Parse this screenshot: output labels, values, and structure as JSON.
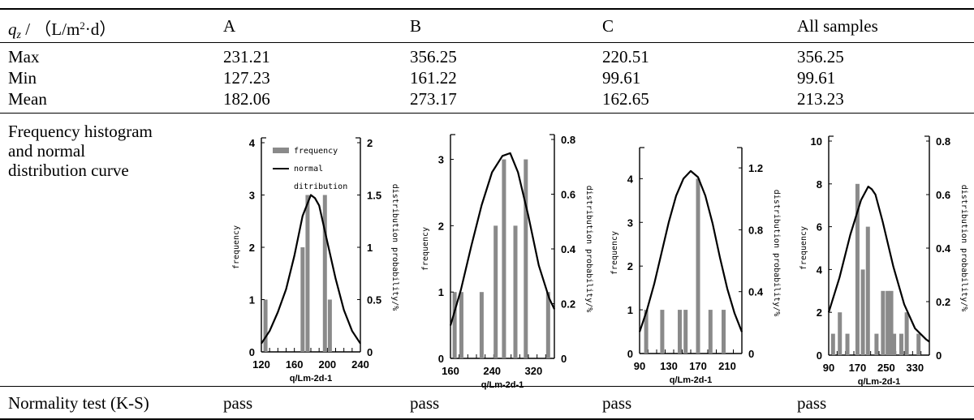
{
  "table": {
    "header": {
      "label_var": "q",
      "label_sub": "z",
      "label_pre": " / （L/m",
      "label_sup": "2",
      "label_post": "·d）",
      "columns": [
        "A",
        "B",
        "C",
        "All samples"
      ]
    },
    "rows": [
      {
        "label": "Max",
        "values": [
          "231.21",
          "356.25",
          "220.51",
          "356.25"
        ]
      },
      {
        "label": "Min",
        "values": [
          "127.23",
          "161.22",
          "99.61",
          "99.61"
        ]
      },
      {
        "label": "Mean",
        "values": [
          "182.06",
          "273.17",
          "162.65",
          "213.23"
        ]
      }
    ],
    "hist_label": "Frequency histogram and normal distribution curve",
    "test_label": "Normality test (K-S)",
    "test_values": [
      "pass",
      "pass",
      "pass",
      "pass"
    ]
  },
  "chart_data": [
    {
      "type": "bar",
      "panel": "A",
      "xlabel": "q/Lm-2d-1",
      "ylabel": "frequency",
      "y2label": "distribution probability/%",
      "x_ticks": [
        "120",
        "160",
        "200",
        "240"
      ],
      "xlim": [
        120,
        240
      ],
      "y_ticks": [
        "0",
        "1",
        "2",
        "3",
        "4"
      ],
      "ylim": [
        0,
        4
      ],
      "y2_ticks": [
        "0",
        "0.5",
        "1",
        "1.5",
        "2"
      ],
      "y2lim": [
        0,
        2
      ],
      "legend": {
        "bar": "frequency",
        "line_1": "normal",
        "line_2": "ditribution"
      },
      "bars": {
        "x": [
          125,
          170,
          176,
          197,
          203
        ],
        "values": [
          1,
          2,
          3,
          3,
          1
        ]
      },
      "curve": {
        "x": [
          120,
          130,
          140,
          150,
          160,
          170,
          180,
          185,
          190,
          200,
          210,
          220,
          230,
          240
        ],
        "y": [
          0.08,
          0.2,
          0.38,
          0.6,
          0.92,
          1.3,
          1.5,
          1.47,
          1.4,
          1.05,
          0.7,
          0.4,
          0.2,
          0.08
        ]
      }
    },
    {
      "type": "bar",
      "panel": "B",
      "xlabel": "q/Lm-2d-1",
      "ylabel": "frequency",
      "y2label": "distribution probability/%",
      "x_ticks": [
        "160",
        "240",
        "320"
      ],
      "xlim": [
        160,
        360
      ],
      "y_ticks": [
        "0",
        "1",
        "2",
        "3"
      ],
      "ylim": [
        0,
        3.3
      ],
      "y2_ticks": [
        "0",
        "0.2",
        "0.4",
        "0.6",
        "0.8"
      ],
      "y2lim": [
        0,
        0.8
      ],
      "bars": {
        "x": [
          168,
          181,
          220,
          247,
          263,
          285,
          305,
          348
        ],
        "values": [
          1,
          1,
          1,
          2,
          3,
          2,
          3,
          1
        ]
      },
      "curve": {
        "x": [
          160,
          180,
          200,
          220,
          240,
          260,
          275,
          290,
          310,
          330,
          350,
          360
        ],
        "y": [
          0.12,
          0.25,
          0.41,
          0.56,
          0.68,
          0.74,
          0.75,
          0.68,
          0.52,
          0.34,
          0.22,
          0.18
        ]
      }
    },
    {
      "type": "bar",
      "panel": "C",
      "xlabel": "q/Lm-2d-1",
      "ylabel": "frequency",
      "y2label": "distribution probability/%",
      "x_ticks": [
        "90",
        "130",
        "170",
        "210"
      ],
      "xlim": [
        90,
        230
      ],
      "y_ticks": [
        "0",
        "1",
        "2",
        "3",
        "4"
      ],
      "ylim": [
        0,
        4.6
      ],
      "y2_ticks": [
        "0",
        "0.4",
        "0.8",
        "1.2"
      ],
      "y2lim": [
        0,
        1.3
      ],
      "bars": {
        "x": [
          99,
          121,
          145,
          153,
          170,
          187,
          205
        ],
        "values": [
          1,
          1,
          1,
          1,
          4,
          1,
          1
        ]
      },
      "curve": {
        "x": [
          90,
          100,
          110,
          120,
          130,
          140,
          150,
          160,
          170,
          180,
          190,
          200,
          210,
          220,
          230
        ],
        "y": [
          0.14,
          0.28,
          0.45,
          0.65,
          0.85,
          1.02,
          1.13,
          1.18,
          1.14,
          1.02,
          0.84,
          0.62,
          0.42,
          0.26,
          0.14
        ]
      }
    },
    {
      "type": "bar",
      "panel": "All samples",
      "xlabel": "q/Lm-2d-1",
      "ylabel": "frequency",
      "y2label": "distribution probability/%",
      "x_ticks": [
        "90",
        "170",
        "250",
        "330"
      ],
      "xlim": [
        90,
        370
      ],
      "y_ticks": [
        "0",
        "2",
        "4",
        "6",
        "8",
        "10"
      ],
      "ylim": [
        0,
        10
      ],
      "y2_ticks": [
        "0",
        "0.2",
        "0.4",
        "0.6",
        "0.8"
      ],
      "y2lim": [
        0,
        0.8
      ],
      "bars": {
        "x": [
          102,
          121,
          142,
          170,
          185,
          199,
          223,
          241,
          254,
          264,
          272,
          292,
          307,
          340
        ],
        "values": [
          1,
          2,
          1,
          8,
          4,
          6,
          1,
          3,
          3,
          3,
          1,
          1,
          2,
          1
        ]
      },
      "curve": {
        "x": [
          90,
          120,
          150,
          180,
          200,
          210,
          220,
          240,
          270,
          300,
          330,
          360,
          370
        ],
        "y": [
          0.16,
          0.29,
          0.45,
          0.58,
          0.63,
          0.62,
          0.6,
          0.5,
          0.33,
          0.19,
          0.1,
          0.06,
          0.05
        ]
      }
    }
  ]
}
